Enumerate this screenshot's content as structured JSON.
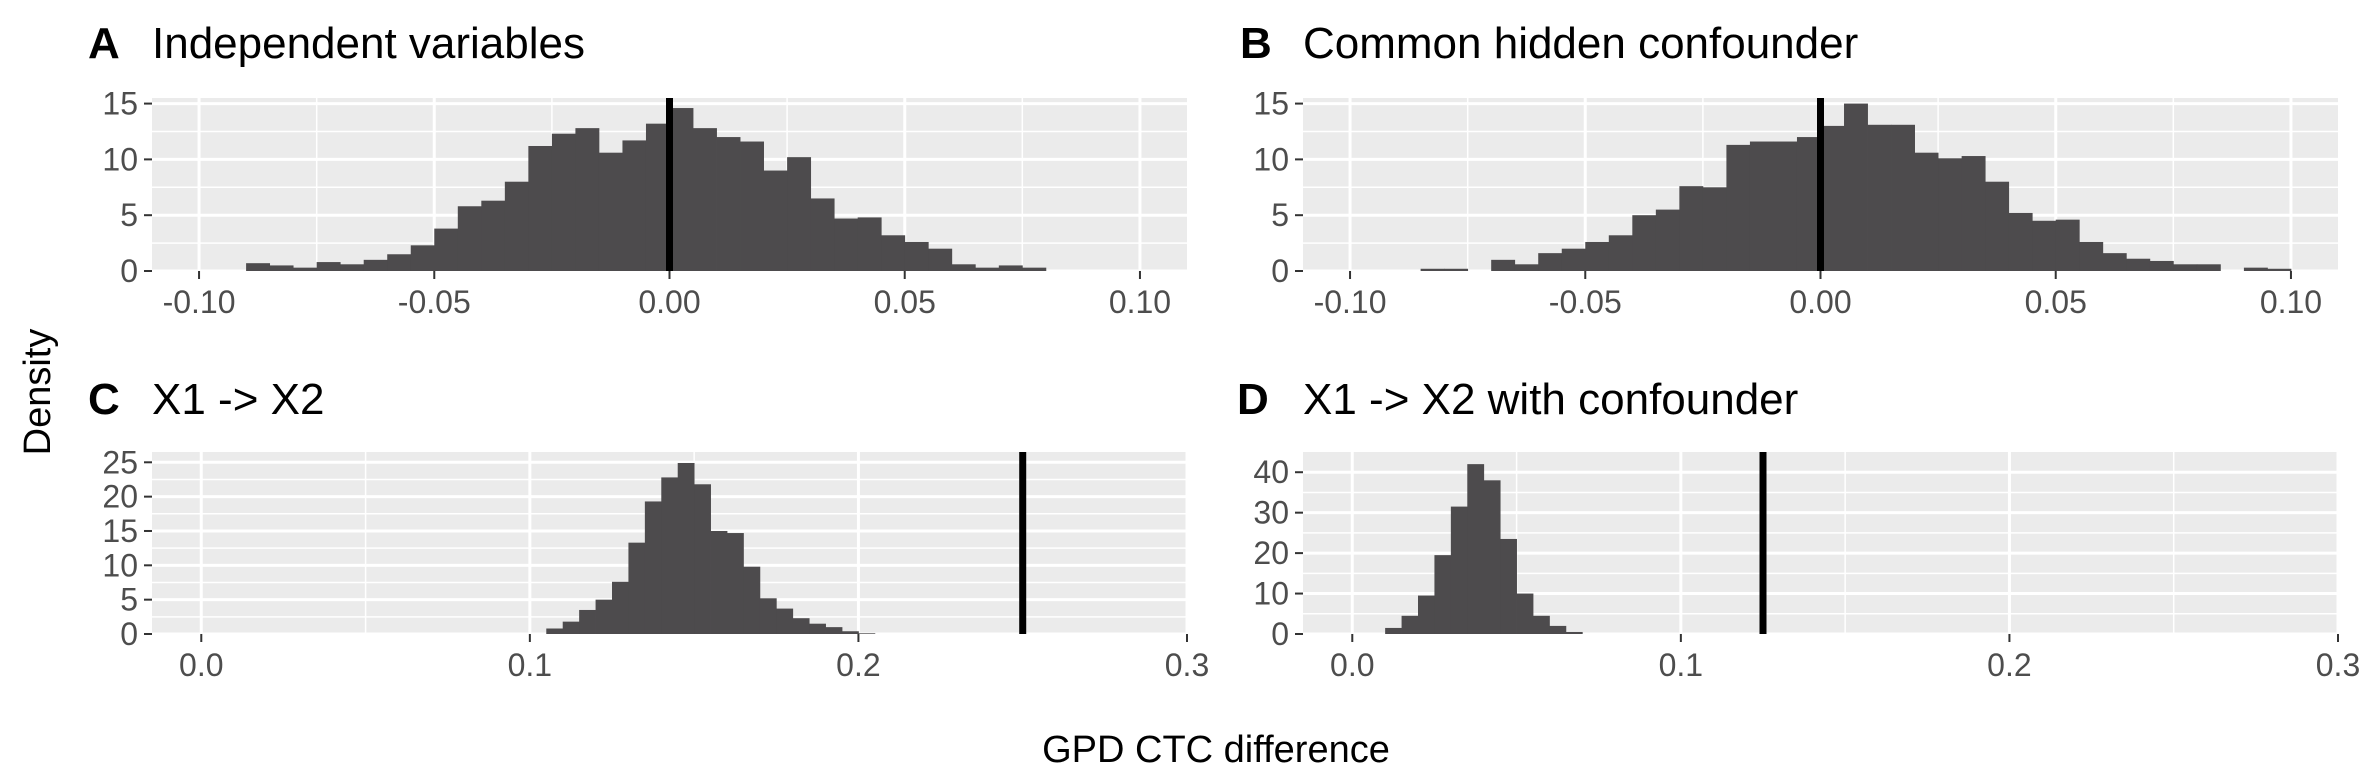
{
  "xlabel": "GPD CTC difference",
  "ylabel": "Density",
  "colors": {
    "panel_bg": "#ebebeb",
    "grid_major": "#ffffff",
    "bar": "#4d4b4d",
    "vline": "#000000",
    "tick_text": "#4d4d4d"
  },
  "chart_data": [
    {
      "type": "bar",
      "tag": "A",
      "title": "Independent variables",
      "xlim": [
        -0.11,
        0.11
      ],
      "ylim": [
        0,
        15.5
      ],
      "xticks": [
        -0.1,
        -0.05,
        0.0,
        0.05,
        0.1
      ],
      "xtick_labels": [
        "-0.10",
        "-0.05",
        "0.00",
        "0.05",
        "0.10"
      ],
      "yticks": [
        0,
        5,
        10,
        15
      ],
      "ytick_labels": [
        "0",
        "5",
        "10",
        "15"
      ],
      "bin_start": -0.09,
      "bin_width": 0.005,
      "values": [
        0.7,
        0.5,
        0.3,
        0.8,
        0.6,
        1.0,
        1.5,
        2.3,
        3.8,
        5.8,
        6.3,
        8.0,
        11.2,
        12.3,
        12.8,
        10.6,
        11.7,
        13.2,
        14.6,
        12.8,
        12.0,
        11.6,
        9.0,
        10.2,
        6.5,
        4.7,
        4.8,
        3.2,
        2.6,
        2.0,
        0.6,
        0.3,
        0.5,
        0.3
      ],
      "vline": 0.0
    },
    {
      "type": "bar",
      "tag": "B",
      "title": "Common hidden confounder",
      "xlim": [
        -0.11,
        0.11
      ],
      "ylim": [
        0,
        15.5
      ],
      "xticks": [
        -0.1,
        -0.05,
        0.0,
        0.05,
        0.1
      ],
      "xtick_labels": [
        "-0.10",
        "-0.05",
        "0.00",
        "0.05",
        "0.10"
      ],
      "yticks": [
        0,
        5,
        10,
        15
      ],
      "yticks_labels": null,
      "ytick_labels": [
        "0",
        "5",
        "10",
        "15"
      ],
      "bin_start": -0.09,
      "bin_width": 0.005,
      "values": [
        0.0,
        0.2,
        0.2,
        0.0,
        1.0,
        0.6,
        1.6,
        2.0,
        2.6,
        3.2,
        5.0,
        5.5,
        7.6,
        7.5,
        11.3,
        11.6,
        11.6,
        12.0,
        13.0,
        15.0,
        13.1,
        13.1,
        10.6,
        10.1,
        10.3,
        8.0,
        5.2,
        4.5,
        4.6,
        2.6,
        1.6,
        1.1,
        0.9,
        0.6,
        0.6,
        0.0,
        0.3,
        0.2
      ],
      "vline": 0.0
    },
    {
      "type": "bar",
      "tag": "C",
      "title": "X1 -> X2",
      "xlim": [
        -0.015,
        0.3
      ],
      "ylim": [
        0,
        26.5
      ],
      "xticks": [
        0.0,
        0.1,
        0.2,
        0.3
      ],
      "xtick_labels": [
        "0.0",
        "0.1",
        "0.2",
        "0.3"
      ],
      "yticks": [
        0,
        5,
        10,
        15,
        20,
        25
      ],
      "ytick_labels": [
        "0",
        "5",
        "10",
        "15",
        "20",
        "25"
      ],
      "bin_start": 0.105,
      "bin_width": 0.005,
      "values": [
        0.8,
        1.8,
        3.5,
        5.0,
        7.6,
        13.3,
        19.3,
        22.8,
        24.9,
        21.8,
        15.0,
        14.7,
        9.8,
        5.2,
        3.7,
        2.3,
        1.5,
        1.0,
        0.4,
        0.1
      ],
      "vline": 0.25
    },
    {
      "type": "bar",
      "tag": "D",
      "title": "X1 -> X2 with confounder",
      "xlim": [
        -0.015,
        0.3
      ],
      "ylim": [
        0,
        45
      ],
      "xticks": [
        0.0,
        0.1,
        0.2,
        0.3
      ],
      "xtick_labels": [
        "0.0",
        "0.1",
        "0.2",
        "0.3"
      ],
      "yticks": [
        0,
        10,
        20,
        30,
        40
      ],
      "ytick_labels": [
        "0",
        "10",
        "20",
        "30",
        "40"
      ],
      "bin_start": 0.01,
      "bin_width": 0.005,
      "values": [
        1.5,
        4.5,
        9.5,
        19.5,
        31.5,
        42.0,
        38.0,
        23.5,
        10.0,
        4.5,
        2.0,
        0.5
      ],
      "vline": 0.125
    }
  ]
}
